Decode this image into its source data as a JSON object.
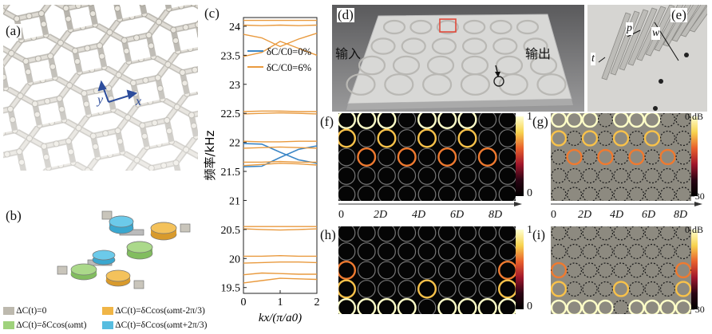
{
  "panels": {
    "a": "(a)",
    "b": "(b)",
    "c": "(c)",
    "d": "(d)",
    "e": "(e)",
    "f": "(f)",
    "g": "(g)",
    "h": "(h)",
    "i": "(i)"
  },
  "panel_a": {
    "axis_y": "y",
    "axis_x": "x"
  },
  "panel_b_legend": [
    {
      "label": "ΔC(t)=0",
      "color": "#bdb9ae"
    },
    {
      "label": "ΔC(t)=δCcos(ωmt-2π/3)",
      "color": "#f0b546"
    },
    {
      "label": "ΔC(t)=δCcos(ωmt)",
      "color": "#9fd27c"
    },
    {
      "label": "ΔC(t)=δCcos(ωmt+2π/3)",
      "color": "#57bde0"
    }
  ],
  "panel_d": {
    "input_label": "输入",
    "output_label": "输出"
  },
  "panel_e": {
    "p": "p",
    "w": "w",
    "t": "t"
  },
  "fields": {
    "colorbar_max": "1",
    "colorbar_min": "0",
    "db_max": "0 dB",
    "db_min": "−30"
  },
  "x_axis": {
    "ticks": [
      "0",
      "2D",
      "4D",
      "6D",
      "8D"
    ]
  },
  "chart_data": {
    "type": "line",
    "ylabel": "频率/kHz",
    "xlabel": "kx/(π/a0)",
    "xlim": [
      0,
      2
    ],
    "ylim": [
      19.4,
      24.15
    ],
    "x_ticks": [
      "0",
      "1",
      "2"
    ],
    "y_ticks": [
      "19.5",
      "20",
      "20.5",
      "21",
      "21.5",
      "22",
      "22.5",
      "23",
      "23.5",
      "24"
    ],
    "legend_position": "upper-right",
    "series": [
      {
        "name": "δC/C0=0%",
        "color": "#3b86c6",
        "bands": [
          [
            [
              0,
              21.58
            ],
            [
              0.5,
              21.59
            ],
            [
              1,
              21.74
            ],
            [
              1.5,
              21.88
            ],
            [
              2,
              21.94
            ]
          ],
          [
            [
              0,
              21.98
            ],
            [
              0.5,
              21.97
            ],
            [
              1,
              21.83
            ],
            [
              1.5,
              21.7
            ],
            [
              2,
              21.64
            ]
          ]
        ]
      },
      {
        "name": "δC/C0=6%",
        "color": "#e99a3e",
        "bands": [
          [
            [
              0,
              19.58
            ],
            [
              0.5,
              19.62
            ],
            [
              1,
              19.66
            ],
            [
              1.5,
              19.65
            ],
            [
              2,
              19.64
            ]
          ],
          [
            [
              0,
              19.72
            ],
            [
              0.5,
              19.75
            ],
            [
              1,
              19.74
            ],
            [
              1.5,
              19.73
            ],
            [
              2,
              19.73
            ]
          ],
          [
            [
              0,
              19.92
            ],
            [
              0.5,
              19.93
            ],
            [
              1,
              19.94
            ],
            [
              1.5,
              19.94
            ],
            [
              2,
              19.93
            ]
          ],
          [
            [
              0,
              20.04
            ],
            [
              0.5,
              20.04
            ],
            [
              1,
              20.05
            ],
            [
              1.5,
              20.04
            ],
            [
              2,
              20.04
            ]
          ],
          [
            [
              0,
              20.51
            ],
            [
              0.5,
              20.5
            ],
            [
              1,
              20.49
            ],
            [
              1.5,
              20.5
            ],
            [
              2,
              20.51
            ]
          ],
          [
            [
              0,
              20.55
            ],
            [
              0.5,
              20.55
            ],
            [
              1,
              20.55
            ],
            [
              1.5,
              20.55
            ],
            [
              2,
              20.55
            ]
          ],
          [
            [
              0,
              21.6
            ],
            [
              0.5,
              21.62
            ],
            [
              1,
              21.64
            ],
            [
              1.5,
              21.63
            ],
            [
              2,
              21.61
            ]
          ],
          [
            [
              0,
              21.66
            ],
            [
              0.5,
              21.66
            ],
            [
              1,
              21.67
            ],
            [
              1.5,
              21.66
            ],
            [
              2,
              21.66
            ]
          ],
          [
            [
              0,
              21.9
            ],
            [
              0.5,
              21.91
            ],
            [
              1,
              21.92
            ],
            [
              1.5,
              21.91
            ],
            [
              2,
              21.9
            ]
          ],
          [
            [
              0,
              22.02
            ],
            [
              0.5,
              22.01
            ],
            [
              1,
              22.01
            ],
            [
              1.5,
              22.02
            ],
            [
              2,
              22.02
            ]
          ],
          [
            [
              0,
              22.49
            ],
            [
              0.5,
              22.5
            ],
            [
              1,
              22.51
            ],
            [
              1.5,
              22.5
            ],
            [
              2,
              22.49
            ]
          ],
          [
            [
              0,
              22.53
            ],
            [
              0.5,
              22.54
            ],
            [
              1,
              22.54
            ],
            [
              1.5,
              22.53
            ],
            [
              2,
              22.53
            ]
          ],
          [
            [
              0,
              23.48
            ],
            [
              0.5,
              23.55
            ],
            [
              1,
              23.74
            ],
            [
              1.5,
              23.62
            ],
            [
              2,
              23.5
            ]
          ],
          [
            [
              0,
              23.86
            ],
            [
              0.5,
              23.8
            ],
            [
              1,
              23.65
            ],
            [
              1.5,
              23.78
            ],
            [
              2,
              23.88
            ]
          ],
          [
            [
              0,
              24.02
            ],
            [
              0.5,
              24.01
            ],
            [
              1,
              24.02
            ],
            [
              1.5,
              24.01
            ],
            [
              2,
              24.02
            ]
          ],
          [
            [
              0,
              24.1
            ],
            [
              0.5,
              24.1
            ],
            [
              1,
              24.1
            ],
            [
              1.5,
              24.1
            ],
            [
              2,
              24.1
            ]
          ]
        ]
      }
    ]
  }
}
